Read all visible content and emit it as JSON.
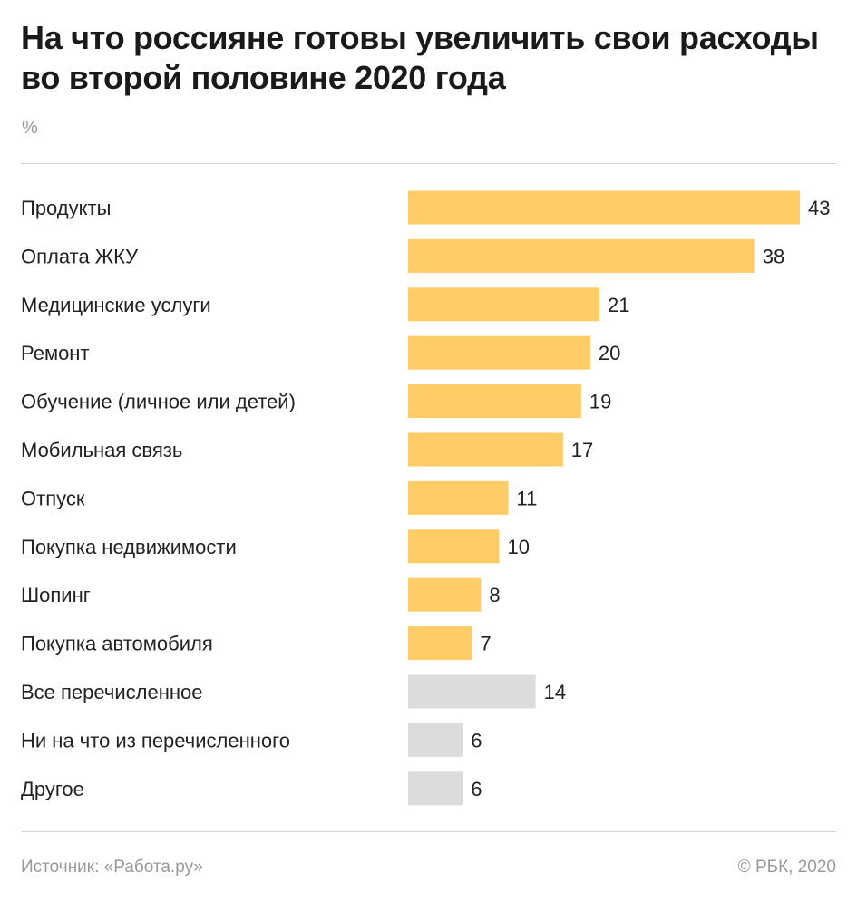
{
  "header": {
    "title_line1": "На что россияне готовы увеличить свои расходы",
    "title_line2": "во второй половине 2020 года",
    "unit": "%"
  },
  "footer": {
    "source": "Источник: «Работа.ру»",
    "copyright": "© РБК, 2020"
  },
  "colors": {
    "primary_bar": "#ffcc66",
    "secondary_bar": "#dcdcdc",
    "text": "#222222",
    "muted": "#9a9a9a"
  },
  "chart_data": {
    "type": "bar",
    "orientation": "horizontal",
    "categories": [
      "Продукты",
      "Оплата ЖКУ",
      "Медицинские услуги",
      "Ремонт",
      "Обучение (личное или детей)",
      "Мобильная связь",
      "Отпуск",
      "Покупка недвижимости",
      "Шопинг",
      "Покупка автомобиля",
      "Все перечисленное",
      "Ни на что из перечисленного",
      "Другое"
    ],
    "values": [
      43,
      38,
      21,
      20,
      19,
      17,
      11,
      10,
      8,
      7,
      14,
      6,
      6
    ],
    "highlight": [
      "primary",
      "primary",
      "primary",
      "primary",
      "primary",
      "primary",
      "primary",
      "primary",
      "primary",
      "primary",
      "secondary",
      "secondary",
      "secondary"
    ],
    "xlim": [
      0,
      43
    ],
    "grid": false,
    "legend": "none"
  }
}
